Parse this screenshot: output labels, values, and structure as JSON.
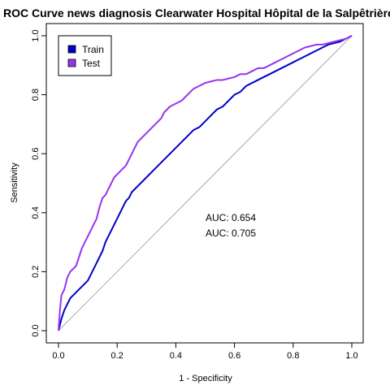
{
  "chart_data": {
    "type": "line",
    "title": "ROC Curve news diagnosis Clearwater Hospital Hôpital de la Salpêtrière",
    "xlabel": "1 - Specificity",
    "ylabel": "Sensitivity",
    "xlim": [
      0,
      1
    ],
    "ylim": [
      0,
      1
    ],
    "x_ticks": [
      0.0,
      0.2,
      0.4,
      0.6,
      0.8,
      1.0
    ],
    "y_ticks": [
      0.0,
      0.2,
      0.4,
      0.6,
      0.8,
      1.0
    ],
    "x_tick_labels": [
      "0.0",
      "0.2",
      "0.4",
      "0.6",
      "0.8",
      "1.0"
    ],
    "y_tick_labels": [
      "0.0",
      "0.2",
      "0.4",
      "0.6",
      "0.8",
      "1.0"
    ],
    "grid": false,
    "legend_position": "top-left",
    "reference_line": {
      "x": [
        0,
        1
      ],
      "y": [
        0,
        1
      ],
      "color": "#aaaaaa"
    },
    "series": [
      {
        "name": "Train",
        "color": "#0000cc",
        "auc_label": "AUC: 0.654",
        "x": [
          0.0,
          0.005,
          0.01,
          0.02,
          0.03,
          0.04,
          0.05,
          0.06,
          0.07,
          0.08,
          0.09,
          0.1,
          0.11,
          0.12,
          0.13,
          0.14,
          0.15,
          0.16,
          0.17,
          0.18,
          0.19,
          0.2,
          0.21,
          0.22,
          0.23,
          0.24,
          0.25,
          0.26,
          0.27,
          0.28,
          0.29,
          0.3,
          0.31,
          0.32,
          0.33,
          0.34,
          0.35,
          0.36,
          0.37,
          0.38,
          0.4,
          0.42,
          0.44,
          0.46,
          0.48,
          0.5,
          0.52,
          0.54,
          0.56,
          0.58,
          0.6,
          0.62,
          0.64,
          0.66,
          0.68,
          0.7,
          0.72,
          0.74,
          0.76,
          0.78,
          0.8,
          0.82,
          0.84,
          0.86,
          0.88,
          0.9,
          0.92,
          0.94,
          0.96,
          0.98,
          1.0
        ],
        "y": [
          0.0,
          0.02,
          0.04,
          0.07,
          0.09,
          0.11,
          0.12,
          0.13,
          0.14,
          0.15,
          0.16,
          0.17,
          0.19,
          0.21,
          0.23,
          0.25,
          0.27,
          0.3,
          0.32,
          0.34,
          0.36,
          0.38,
          0.4,
          0.42,
          0.44,
          0.45,
          0.47,
          0.48,
          0.49,
          0.5,
          0.51,
          0.52,
          0.53,
          0.54,
          0.55,
          0.56,
          0.57,
          0.58,
          0.59,
          0.6,
          0.62,
          0.64,
          0.66,
          0.68,
          0.69,
          0.71,
          0.73,
          0.75,
          0.76,
          0.78,
          0.8,
          0.81,
          0.83,
          0.84,
          0.85,
          0.86,
          0.87,
          0.88,
          0.89,
          0.9,
          0.91,
          0.92,
          0.93,
          0.94,
          0.95,
          0.96,
          0.97,
          0.975,
          0.98,
          0.99,
          1.0
        ]
      },
      {
        "name": "Test",
        "color": "#9933ee",
        "auc_label": "AUC: 0.705",
        "x": [
          0.0,
          0.005,
          0.01,
          0.015,
          0.02,
          0.03,
          0.04,
          0.05,
          0.06,
          0.07,
          0.08,
          0.09,
          0.1,
          0.11,
          0.12,
          0.13,
          0.14,
          0.15,
          0.16,
          0.17,
          0.18,
          0.19,
          0.2,
          0.21,
          0.22,
          0.23,
          0.24,
          0.25,
          0.26,
          0.27,
          0.28,
          0.29,
          0.3,
          0.31,
          0.32,
          0.33,
          0.34,
          0.35,
          0.36,
          0.38,
          0.4,
          0.42,
          0.44,
          0.46,
          0.48,
          0.5,
          0.52,
          0.54,
          0.56,
          0.58,
          0.6,
          0.62,
          0.64,
          0.66,
          0.68,
          0.7,
          0.72,
          0.74,
          0.76,
          0.78,
          0.8,
          0.82,
          0.84,
          0.86,
          0.88,
          0.9,
          0.92,
          0.94,
          0.96,
          0.98,
          1.0
        ],
        "y": [
          0.0,
          0.07,
          0.12,
          0.13,
          0.14,
          0.18,
          0.2,
          0.21,
          0.22,
          0.25,
          0.28,
          0.3,
          0.32,
          0.34,
          0.36,
          0.38,
          0.42,
          0.45,
          0.46,
          0.48,
          0.5,
          0.52,
          0.53,
          0.54,
          0.55,
          0.56,
          0.58,
          0.6,
          0.62,
          0.64,
          0.65,
          0.66,
          0.67,
          0.68,
          0.69,
          0.7,
          0.71,
          0.72,
          0.74,
          0.76,
          0.77,
          0.78,
          0.8,
          0.82,
          0.83,
          0.84,
          0.845,
          0.85,
          0.85,
          0.855,
          0.86,
          0.87,
          0.87,
          0.88,
          0.89,
          0.89,
          0.9,
          0.91,
          0.92,
          0.93,
          0.94,
          0.95,
          0.96,
          0.965,
          0.97,
          0.97,
          0.975,
          0.98,
          0.985,
          0.99,
          1.0
        ]
      }
    ]
  }
}
